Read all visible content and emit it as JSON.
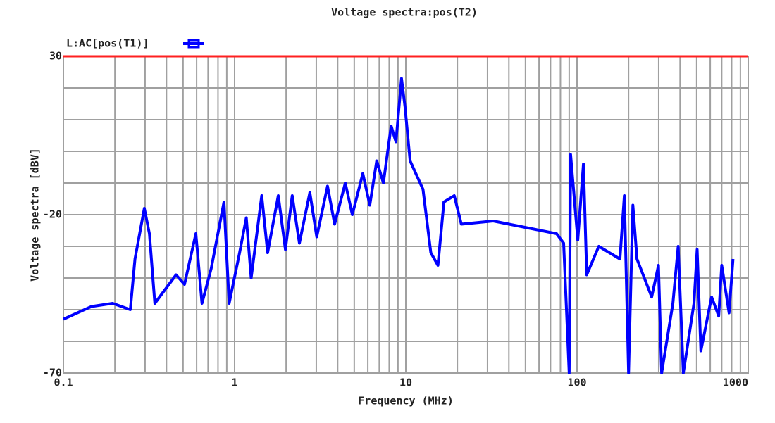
{
  "chart_data": {
    "type": "line",
    "title": "Voltage spectra:pos(T2)",
    "x_label": "Frequency (MHz)",
    "y_label": "Voltage spectra [dBV]",
    "xscale": "log",
    "xlim": [
      0.1,
      1000
    ],
    "xticks": [
      0.1,
      1,
      10,
      100,
      1000
    ],
    "ylim": [
      -70,
      30
    ],
    "yticks": [
      30,
      -20,
      -70
    ],
    "grid": true,
    "series": [
      {
        "name": "L:AC[pos(T1)]",
        "color": "#0000ff",
        "x": [
          0.1,
          0.146,
          0.194,
          0.246,
          0.262,
          0.297,
          0.318,
          0.342,
          0.455,
          0.51,
          0.594,
          0.645,
          0.73,
          0.867,
          0.93,
          1.07,
          1.17,
          1.25,
          1.44,
          1.56,
          1.8,
          1.98,
          2.17,
          2.39,
          2.75,
          3.02,
          3.49,
          3.84,
          4.43,
          4.87,
          5.61,
          6.16,
          6.76,
          7.4,
          8.21,
          8.76,
          9.44,
          9.9,
          10.6,
          12.6,
          14,
          15.4,
          16.7,
          19.2,
          21.1,
          32.4,
          76,
          83.5,
          90,
          91.7,
          101,
          109,
          114,
          134,
          178,
          189,
          200,
          212,
          224,
          273,
          299,
          312,
          363,
          390,
          418,
          482,
          503,
          529,
          611,
          672,
          700,
          773,
          815
        ],
        "values": [
          -53,
          -49,
          -48,
          -50,
          -34,
          -18,
          -26,
          -48,
          -39,
          -42,
          -26,
          -48,
          -37,
          -16,
          -48,
          -32,
          -21,
          -40,
          -14,
          -32,
          -14,
          -31,
          -14,
          -29,
          -13,
          -27,
          -11,
          -23,
          -10,
          -20,
          -7,
          -17,
          -3,
          -10,
          8,
          3,
          23,
          14,
          -3,
          -12,
          -32,
          -36,
          -16,
          -14,
          -23,
          -22,
          -26,
          -29,
          -70,
          -1,
          -28,
          -4,
          -39,
          -30,
          -34,
          -14,
          -70,
          -17,
          -34,
          -46,
          -36,
          -70,
          -48,
          -30,
          -70,
          -48,
          -31,
          -63,
          -46,
          -52,
          -36,
          -51,
          -34
        ]
      }
    ]
  }
}
